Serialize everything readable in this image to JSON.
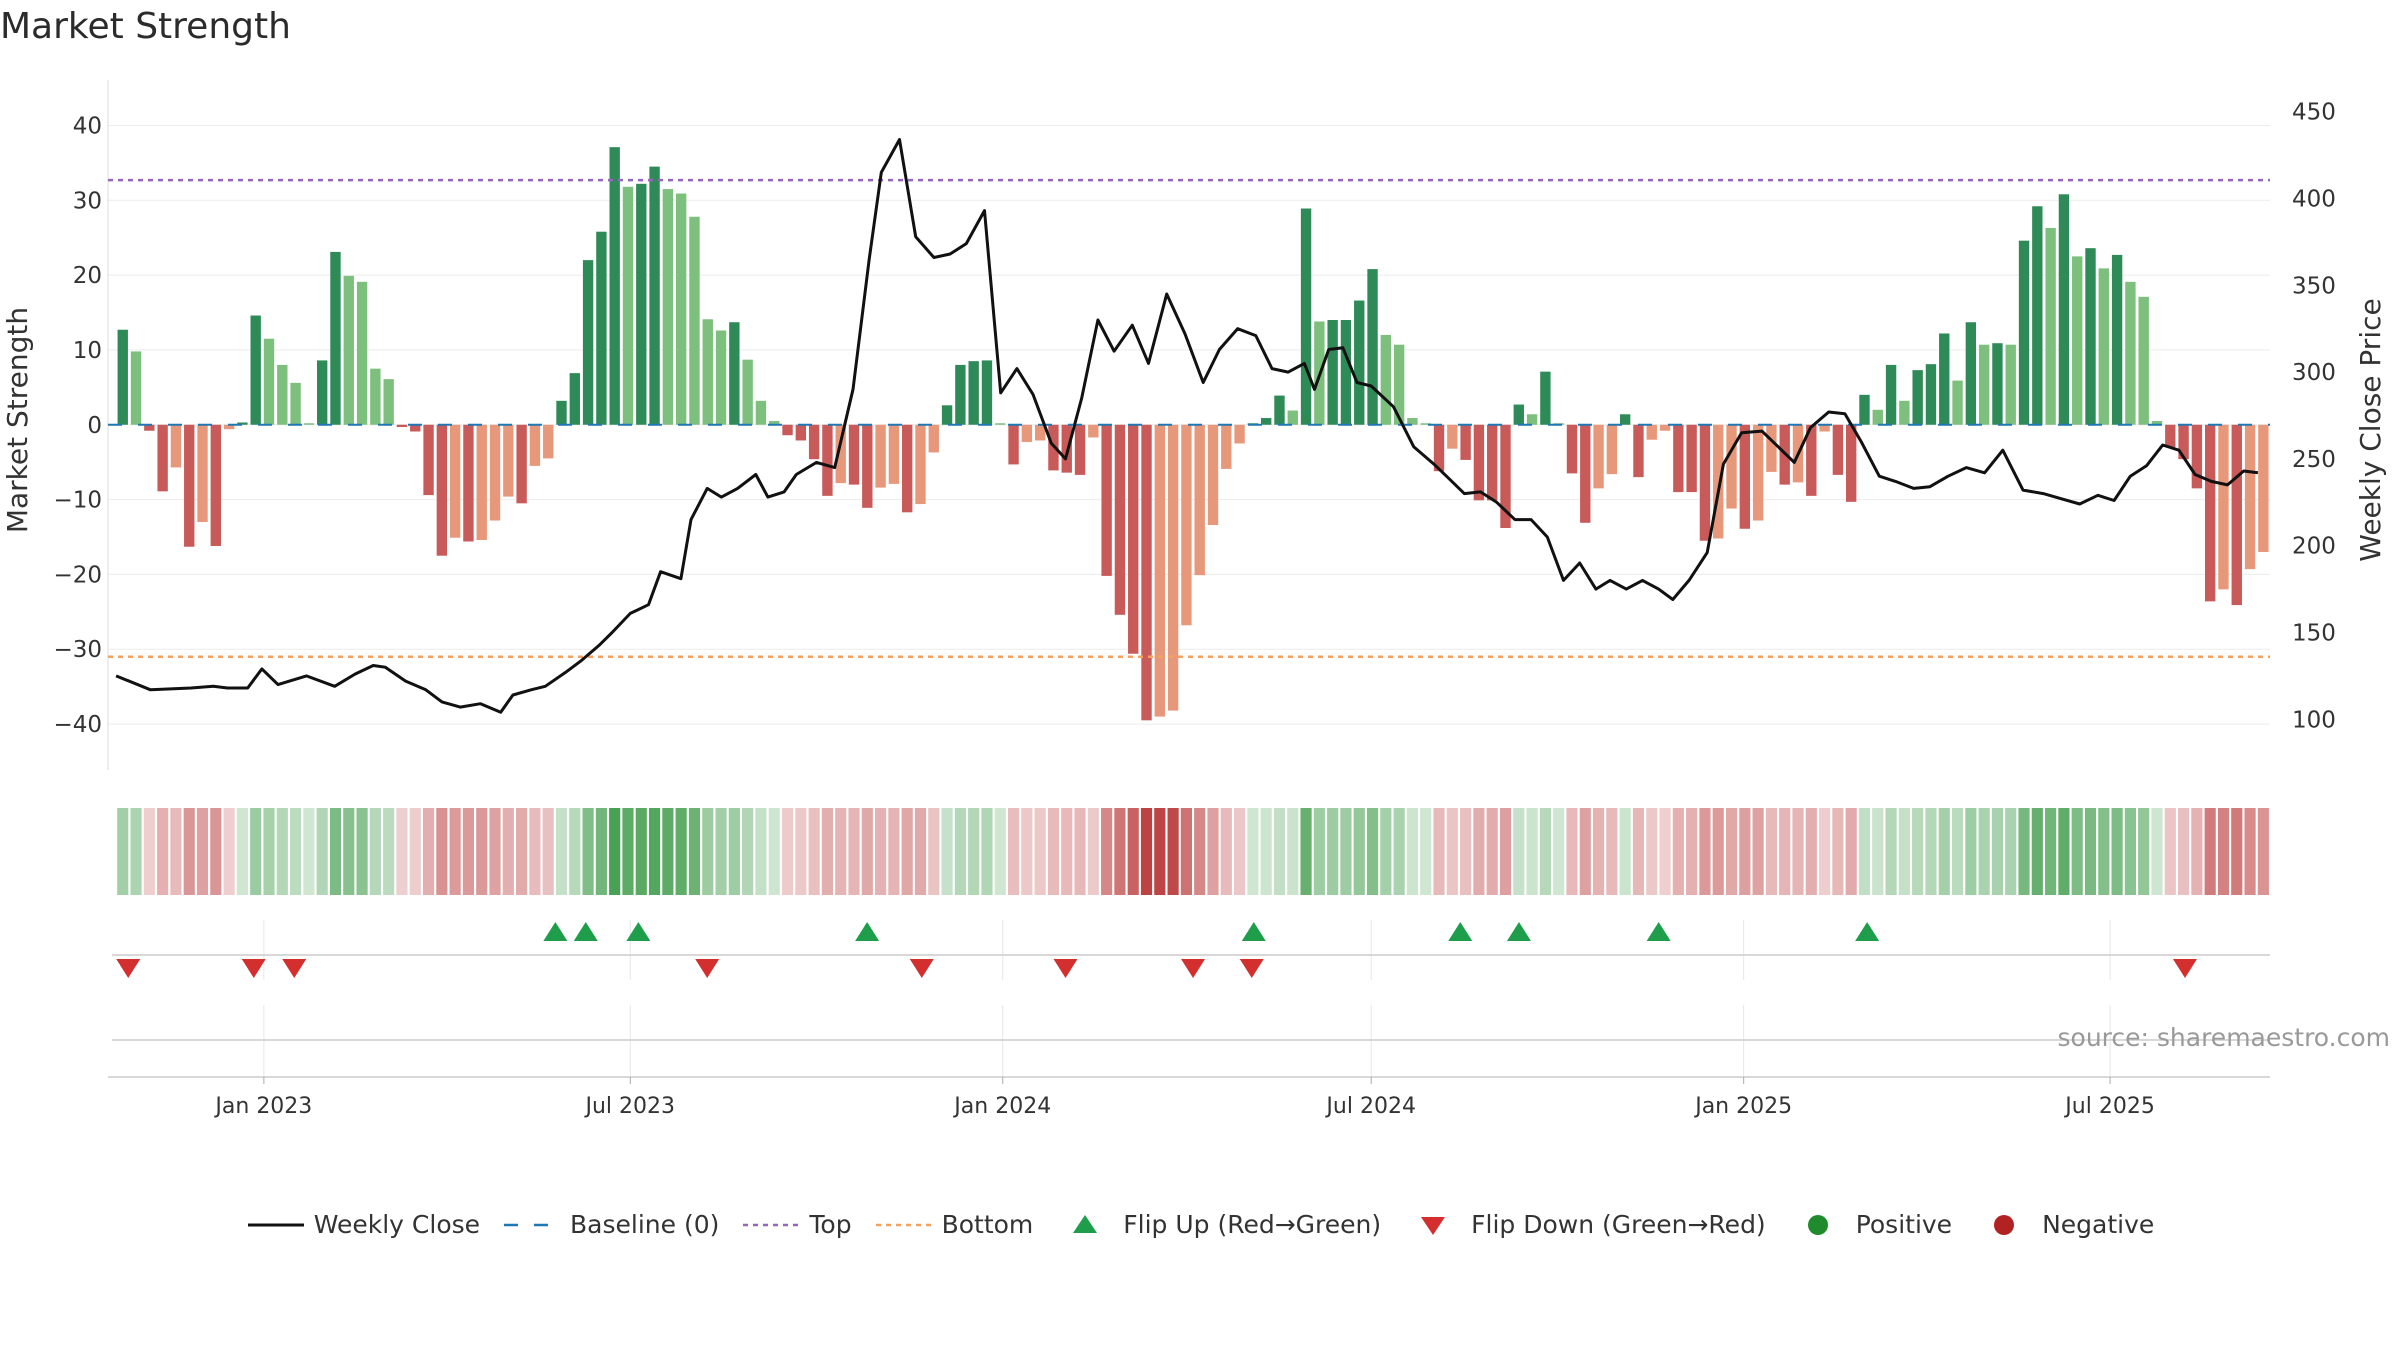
{
  "title": "Market Strength",
  "source": "source: sharemaestro.com",
  "colors": {
    "pos_dark": "#2e8b57",
    "pos_light": "#7dbf7d",
    "neg_dark": "#c85a5a",
    "neg_light": "#e8987a",
    "line": "#111111",
    "baseline": "#1f77b4",
    "top": "#9467bd",
    "bottom": "#f4a261",
    "flip_up": "#1e9e4a",
    "flip_down": "#d32f2f",
    "positive": "#1f8b2c",
    "negative": "#b22222"
  },
  "legend": [
    {
      "key": "line",
      "label": "Weekly Close"
    },
    {
      "key": "baseline",
      "label": "Baseline (0)"
    },
    {
      "key": "top",
      "label": "Top"
    },
    {
      "key": "bottom",
      "label": "Bottom"
    },
    {
      "key": "flip_up",
      "label": "Flip Up (Red→Green)"
    },
    {
      "key": "flip_down",
      "label": "Flip Down (Green→Red)"
    },
    {
      "key": "positive",
      "label": "Positive"
    },
    {
      "key": "negative",
      "label": "Negative"
    }
  ],
  "chart_data": {
    "type": "bar",
    "ylabel": "Market Strength",
    "y2label": "Weekly Close Price",
    "ylim": [
      -44,
      43
    ],
    "y2lim": [
      80,
      455
    ],
    "yticks": [
      40,
      30,
      20,
      10,
      0,
      -10,
      -20,
      -30,
      -40
    ],
    "y2ticks": [
      450,
      400,
      350,
      300,
      250,
      200,
      150,
      100
    ],
    "top_line": 32.7,
    "bottom_line": -31.0,
    "xlim": [
      "2022-10-16",
      "2025-09-18"
    ],
    "xticks": [
      {
        "date": "2023-01-01",
        "label": "Jan 2023"
      },
      {
        "date": "2023-07-01",
        "label": "Jul 2023"
      },
      {
        "date": "2024-01-01",
        "label": "Jan 2024"
      },
      {
        "date": "2024-07-01",
        "label": "Jul 2024"
      },
      {
        "date": "2025-01-01",
        "label": "Jan 2025"
      },
      {
        "date": "2025-07-01",
        "label": "Jul 2025"
      }
    ],
    "first_week": "2022-10-20",
    "strength": [
      12.7,
      9.8,
      -0.8,
      -8.9,
      -5.7,
      -16.3,
      -13.0,
      -16.2,
      -0.6,
      0.3,
      14.6,
      11.5,
      8.0,
      5.6,
      0.2,
      8.6,
      23.1,
      19.9,
      19.1,
      7.5,
      6.1,
      -0.3,
      -0.9,
      -9.4,
      -17.5,
      -15.1,
      -15.6,
      -15.4,
      -12.8,
      -9.6,
      -10.5,
      -5.5,
      -4.5,
      3.2,
      6.9,
      22.0,
      25.8,
      37.1,
      31.8,
      32.2,
      34.5,
      31.5,
      30.9,
      27.8,
      14.1,
      12.6,
      13.7,
      8.7,
      3.2,
      0.5,
      -1.4,
      -2.1,
      -4.6,
      -9.5,
      -7.8,
      -8.0,
      -11.1,
      -8.4,
      -7.9,
      -11.7,
      -10.6,
      -3.7,
      2.6,
      8.0,
      8.5,
      8.6,
      0.2,
      -5.3,
      -2.3,
      -2.1,
      -6.1,
      -6.4,
      -6.7,
      -1.7,
      -20.2,
      -25.4,
      -30.6,
      -39.5,
      -39.0,
      -38.2,
      -26.8,
      -20.1,
      -13.4,
      -5.9,
      -2.5,
      0.2,
      0.9,
      3.9,
      1.9,
      28.9,
      13.8,
      14.0,
      14.0,
      16.6,
      20.8,
      12.0,
      10.7,
      0.9,
      0.2,
      -6.2,
      -3.2,
      -4.7,
      -10.1,
      -10.1,
      -13.8,
      2.7,
      1.4,
      7.1,
      0.2,
      -6.5,
      -13.1,
      -8.5,
      -6.6,
      1.4,
      -7.0,
      -2.0,
      -0.8,
      -9.0,
      -9.0,
      -15.5,
      -15.2,
      -11.2,
      -13.9,
      -12.8,
      -6.3,
      -8.0,
      -7.7,
      -9.5,
      -0.9,
      -6.7,
      -10.3,
      4.0,
      2.0,
      8.0,
      3.2,
      7.3,
      8.1,
      12.2,
      5.9,
      13.7,
      10.7,
      10.9,
      10.7,
      24.6,
      29.2,
      26.3,
      30.8,
      22.5,
      23.6,
      20.9,
      22.7,
      19.1,
      17.1,
      0.5,
      -3.0,
      -4.6,
      -8.5,
      -23.6,
      -22.0,
      -24.1,
      -19.3,
      -17.0
    ],
    "close_x": [
      "2022-10-20",
      "2022-11-06",
      "2022-11-26",
      "2022-12-07",
      "2022-12-14",
      "2022-12-24",
      "2022-12-31",
      "2023-01-08",
      "2023-01-22",
      "2023-02-05",
      "2023-02-15",
      "2023-02-24",
      "2023-03-02",
      "2023-03-12",
      "2023-03-22",
      "2023-03-30",
      "2023-04-08",
      "2023-04-18",
      "2023-04-28",
      "2023-05-04",
      "2023-05-13",
      "2023-05-20",
      "2023-05-30",
      "2023-06-07",
      "2023-06-16",
      "2023-06-22",
      "2023-07-01",
      "2023-07-10",
      "2023-07-16",
      "2023-07-26",
      "2023-07-31",
      "2023-08-08",
      "2023-08-15",
      "2023-08-23",
      "2023-09-01",
      "2023-09-07",
      "2023-09-15",
      "2023-09-21",
      "2023-10-01",
      "2023-10-10",
      "2023-10-19",
      "2023-10-27",
      "2023-11-02",
      "2023-11-11",
      "2023-11-19",
      "2023-11-28",
      "2023-12-06",
      "2023-12-14",
      "2023-12-23",
      "2023-12-31",
      "2024-01-08",
      "2024-01-16",
      "2024-01-25",
      "2024-02-01",
      "2024-02-09",
      "2024-02-17",
      "2024-02-25",
      "2024-03-05",
      "2024-03-13",
      "2024-03-22",
      "2024-03-31",
      "2024-04-09",
      "2024-04-17",
      "2024-04-26",
      "2024-05-05",
      "2024-05-13",
      "2024-05-21",
      "2024-05-29",
      "2024-06-03",
      "2024-06-10",
      "2024-06-17",
      "2024-06-24",
      "2024-07-01",
      "2024-07-12",
      "2024-07-22",
      "2024-08-01",
      "2024-08-09",
      "2024-08-16",
      "2024-08-24",
      "2024-09-01",
      "2024-09-10",
      "2024-09-18",
      "2024-09-26",
      "2024-10-04",
      "2024-10-12",
      "2024-10-20",
      "2024-10-27",
      "2024-11-04",
      "2024-11-12",
      "2024-11-20",
      "2024-11-27",
      "2024-12-05",
      "2024-12-14",
      "2024-12-22",
      "2024-12-31",
      "2025-01-10",
      "2025-01-18",
      "2025-01-26",
      "2025-02-03",
      "2025-02-12",
      "2025-02-20",
      "2025-02-28",
      "2025-03-09",
      "2025-03-17",
      "2025-03-26",
      "2025-04-03",
      "2025-04-12",
      "2025-04-21",
      "2025-04-30",
      "2025-05-09",
      "2025-05-19",
      "2025-05-29",
      "2025-06-07",
      "2025-06-16",
      "2025-06-25",
      "2025-07-03",
      "2025-07-11",
      "2025-07-19",
      "2025-07-27",
      "2025-08-04",
      "2025-08-12",
      "2025-08-20",
      "2025-08-28",
      "2025-09-05",
      "2025-09-12"
    ],
    "close": [
      125,
      117,
      118,
      119,
      118,
      118,
      129,
      120,
      125,
      119,
      126,
      131,
      130,
      122,
      117,
      110,
      107,
      109,
      104,
      114,
      117,
      119,
      127,
      134,
      143,
      150,
      161,
      166,
      185,
      181,
      215,
      233,
      228,
      233,
      241,
      228,
      231,
      241,
      248,
      245,
      290,
      365,
      415,
      434,
      378,
      366,
      368,
      374,
      393,
      288,
      302,
      287,
      259,
      250,
      285,
      330,
      312,
      327,
      305,
      345,
      322,
      294,
      313,
      325,
      321,
      302,
      300,
      305,
      290,
      313,
      314,
      294,
      292,
      280,
      257,
      247,
      238,
      230,
      231,
      225,
      215,
      215,
      205,
      180,
      190,
      175,
      180,
      175,
      180,
      175,
      169,
      180,
      196,
      247,
      265,
      266,
      257,
      248,
      268,
      277,
      276,
      260,
      240,
      237,
      233,
      234,
      240,
      245,
      242,
      255,
      232,
      230,
      227,
      224,
      229,
      226,
      240,
      246,
      258,
      255,
      241,
      237,
      235,
      243,
      242
    ],
    "flip_up": [
      "2023-05-25",
      "2023-06-09",
      "2023-07-05",
      "2023-10-26",
      "2024-05-04",
      "2024-08-14",
      "2024-09-12",
      "2024-11-20",
      "2025-03-03"
    ],
    "flip_down": [
      "2022-10-26",
      "2022-12-27",
      "2023-01-16",
      "2023-08-08",
      "2023-11-22",
      "2024-02-01",
      "2024-04-04",
      "2024-05-03",
      "2025-08-07"
    ]
  }
}
